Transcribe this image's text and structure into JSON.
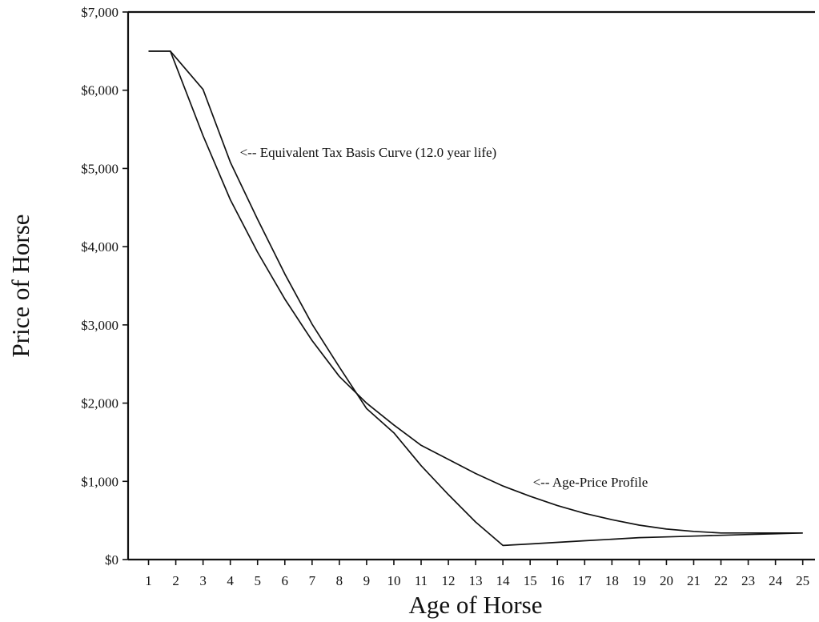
{
  "chart_data": {
    "type": "line",
    "title": "",
    "xlabel": "Age of Horse",
    "ylabel": "Price of Horse",
    "x": [
      1,
      2,
      3,
      4,
      5,
      6,
      7,
      8,
      9,
      10,
      11,
      12,
      13,
      14,
      15,
      16,
      17,
      18,
      19,
      20,
      21,
      22,
      23,
      24,
      25
    ],
    "x_ticks": [
      "1",
      "2",
      "3",
      "4",
      "5",
      "6",
      "7",
      "8",
      "9",
      "10",
      "11",
      "12",
      "13",
      "14",
      "15",
      "16",
      "17",
      "18",
      "19",
      "20",
      "21",
      "22",
      "23",
      "24",
      "25"
    ],
    "xlim": [
      0.25,
      25.45
    ],
    "ylim": [
      0,
      7000
    ],
    "y_ticks": [
      0,
      1000,
      2000,
      3000,
      4000,
      5000,
      6000,
      7000
    ],
    "y_tick_labels": [
      "$0",
      "$1,000",
      "$2,000",
      "$3,000",
      "$4,000",
      "$5,000",
      "$6,000",
      "$7,000"
    ],
    "grid": false,
    "series": [
      {
        "id": "age-price-profile",
        "x": [
          1,
          1.8,
          3,
          4,
          5,
          6,
          7,
          8,
          9,
          10,
          11,
          12,
          13,
          14,
          15,
          16,
          17,
          18,
          19,
          20,
          21,
          22,
          23,
          24,
          25
        ],
        "y": [
          6500,
          6500,
          5420,
          4600,
          3930,
          3330,
          2800,
          2340,
          2000,
          1720,
          1460,
          1280,
          1100,
          940,
          810,
          690,
          590,
          510,
          440,
          390,
          360,
          340,
          340,
          340,
          340
        ]
      },
      {
        "id": "equivalent-tax-basis-curve",
        "x": [
          1,
          1.8,
          3,
          4,
          5,
          6,
          7,
          8,
          9,
          10,
          11,
          12,
          13,
          14,
          15,
          16,
          17,
          18,
          19,
          20,
          21,
          22,
          23,
          24,
          25
        ],
        "y": [
          6500,
          6500,
          6010,
          5080,
          4350,
          3650,
          3010,
          2460,
          1930,
          1620,
          1200,
          830,
          480,
          180,
          200,
          220,
          240,
          260,
          280,
          290,
          300,
          310,
          320,
          330,
          340
        ]
      }
    ],
    "annotations": [
      {
        "text": "<-- Equivalent Tax Basis Curve (12.0 year life)",
        "x": 4.35,
        "y": 5150
      },
      {
        "text": "<-- Age-Price Profile",
        "x": 15.1,
        "y": 930
      }
    ]
  }
}
